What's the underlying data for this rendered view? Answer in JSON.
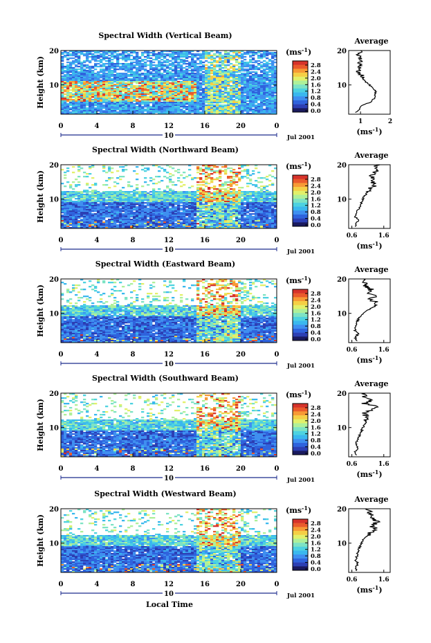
{
  "figure": {
    "xlabel": "Local Time",
    "date_label": "Jul 2001",
    "date_day": "10",
    "ylabel": "Height (km)",
    "colorbar_unit": "(ms",
    "colorbar_unit_exp": "-1",
    "avg_title": "Average",
    "avg_xlabel": "(ms",
    "avg_xlabel_exp": "-1"
  },
  "colorscale": {
    "ticks": [
      "2.8",
      "2.4",
      "2.0",
      "1.6",
      "1.2",
      "0.8",
      "0.4",
      "0.0"
    ],
    "colors": [
      "#1a1a5e",
      "#2c3fb4",
      "#2f63dd",
      "#3f8ff0",
      "#3ab8ee",
      "#4dd2e0",
      "#7de3c4",
      "#aef09a",
      "#e2f06a",
      "#f5cf45",
      "#f79a35",
      "#ea5a2c",
      "#d6332b"
    ]
  },
  "chart_data": [
    {
      "type": "heatmap",
      "title": "Spectral Width (Vertical Beam)",
      "xlabel": "Local Time",
      "ylabel": "Height (km)",
      "x_ticks": [
        "0",
        "4",
        "8",
        "12",
        "16",
        "20",
        "0"
      ],
      "x_range": [
        0,
        24
      ],
      "y_ticks": [
        "20",
        "10"
      ],
      "y_range": [
        1.5,
        20
      ],
      "colorbar_range": [
        0.0,
        3.0
      ],
      "colorbar_unit": "ms-1",
      "profile": {
        "title": "Average",
        "xlabel": "(ms-1)",
        "x_ticks": [
          "1",
          "2"
        ],
        "x_range": [
          0.6,
          2.0
        ],
        "y_ticks": [
          "20",
          "10"
        ],
        "heights": [
          2,
          3,
          4,
          5,
          6,
          7,
          8,
          9,
          10,
          11,
          12,
          13,
          14,
          15,
          16,
          17,
          18,
          19,
          20
        ],
        "values": [
          0.85,
          0.95,
          1.05,
          1.35,
          1.45,
          1.5,
          1.5,
          1.45,
          1.3,
          1.15,
          1.05,
          1.0,
          0.95,
          0.95,
          1.0,
          0.98,
          1.0,
          0.95,
          1.05
        ]
      }
    },
    {
      "type": "heatmap",
      "title": "Spectral Width (Northward Beam)",
      "xlabel": "Local Time",
      "ylabel": "Height (km)",
      "x_ticks": [
        "0",
        "4",
        "8",
        "12",
        "16",
        "20",
        "0"
      ],
      "x_range": [
        0,
        24
      ],
      "y_ticks": [
        "20",
        "10"
      ],
      "y_range": [
        1.5,
        20
      ],
      "colorbar_range": [
        0.0,
        3.0
      ],
      "colorbar_unit": "ms-1",
      "profile": {
        "title": "Average",
        "xlabel": "(ms-1)",
        "x_ticks": [
          "0.6",
          "1.6"
        ],
        "x_range": [
          0.5,
          1.8
        ],
        "y_ticks": [
          "20",
          "10"
        ],
        "heights": [
          2,
          3,
          4,
          5,
          6,
          7,
          8,
          9,
          10,
          11,
          12,
          13,
          14,
          15,
          16,
          17,
          18,
          19,
          20
        ],
        "values": [
          0.7,
          0.75,
          0.8,
          0.7,
          0.75,
          0.8,
          0.85,
          0.9,
          0.95,
          1.0,
          1.1,
          1.2,
          1.3,
          1.25,
          1.3,
          1.2,
          1.35,
          1.25,
          1.4
        ]
      }
    },
    {
      "type": "heatmap",
      "title": "Spectral Width (Eastward Beam)",
      "xlabel": "Local Time",
      "ylabel": "Height (km)",
      "x_ticks": [
        "0",
        "4",
        "8",
        "12",
        "16",
        "20",
        "0"
      ],
      "x_range": [
        0,
        24
      ],
      "y_ticks": [
        "20",
        "10"
      ],
      "y_range": [
        1.5,
        20
      ],
      "colorbar_range": [
        0.0,
        3.0
      ],
      "colorbar_unit": "ms-1",
      "profile": {
        "title": "Average",
        "xlabel": "(ms-1)",
        "x_ticks": [
          "0.6",
          "1.6"
        ],
        "x_range": [
          0.5,
          1.8
        ],
        "y_ticks": [
          "20",
          "10"
        ],
        "heights": [
          2,
          3,
          4,
          5,
          6,
          7,
          8,
          9,
          10,
          11,
          12,
          13,
          14,
          15,
          16,
          17,
          18,
          19,
          20
        ],
        "values": [
          0.75,
          0.7,
          0.8,
          0.7,
          0.72,
          0.75,
          0.78,
          0.85,
          0.95,
          1.1,
          1.3,
          1.4,
          1.2,
          1.3,
          1.15,
          1.2,
          1.05,
          0.95,
          0.9
        ]
      }
    },
    {
      "type": "heatmap",
      "title": "Spectral Width (Southward Beam)",
      "xlabel": "Local Time",
      "ylabel": "Height (km)",
      "x_ticks": [
        "0",
        "4",
        "8",
        "12",
        "16",
        "20",
        "0"
      ],
      "x_range": [
        0,
        24
      ],
      "y_ticks": [
        "20",
        "10"
      ],
      "y_range": [
        1.5,
        20
      ],
      "colorbar_range": [
        0.0,
        3.0
      ],
      "colorbar_unit": "ms-1",
      "profile": {
        "title": "Average",
        "xlabel": "(ms-1)",
        "x_ticks": [
          "0.6",
          "1.6"
        ],
        "x_range": [
          0.5,
          1.8
        ],
        "y_ticks": [
          "20",
          "10"
        ],
        "heights": [
          2,
          3,
          4,
          5,
          6,
          7,
          8,
          9,
          10,
          11,
          12,
          13,
          14,
          15,
          16,
          17,
          18,
          19,
          20
        ],
        "values": [
          0.75,
          0.7,
          0.8,
          0.72,
          0.75,
          0.8,
          0.85,
          0.9,
          0.95,
          1.0,
          1.05,
          1.1,
          1.0,
          1.15,
          1.5,
          1.0,
          1.2,
          0.95,
          1.05
        ]
      }
    },
    {
      "type": "heatmap",
      "title": "Spectral Width (Westward Beam)",
      "xlabel": "Local Time",
      "ylabel": "Height (km)",
      "x_ticks": [
        "0",
        "4",
        "8",
        "12",
        "16",
        "20",
        "0"
      ],
      "x_range": [
        0,
        24
      ],
      "y_ticks": [
        "20",
        "10"
      ],
      "y_range": [
        1.5,
        20
      ],
      "colorbar_range": [
        0.0,
        3.0
      ],
      "colorbar_unit": "ms-1",
      "profile": {
        "title": "Average",
        "xlabel": "(ms-1)",
        "x_ticks": [
          "0.6",
          "1.6"
        ],
        "x_range": [
          0.5,
          1.8
        ],
        "y_ticks": [
          "20",
          "10"
        ],
        "heights": [
          2,
          3,
          4,
          5,
          6,
          7,
          8,
          9,
          10,
          11,
          12,
          13,
          14,
          15,
          16,
          17,
          18,
          19,
          20
        ],
        "values": [
          0.75,
          0.7,
          0.8,
          0.72,
          0.75,
          0.78,
          0.8,
          0.85,
          0.9,
          0.95,
          1.05,
          1.2,
          1.35,
          1.2,
          1.4,
          1.25,
          1.3,
          1.15,
          1.1
        ]
      }
    }
  ]
}
